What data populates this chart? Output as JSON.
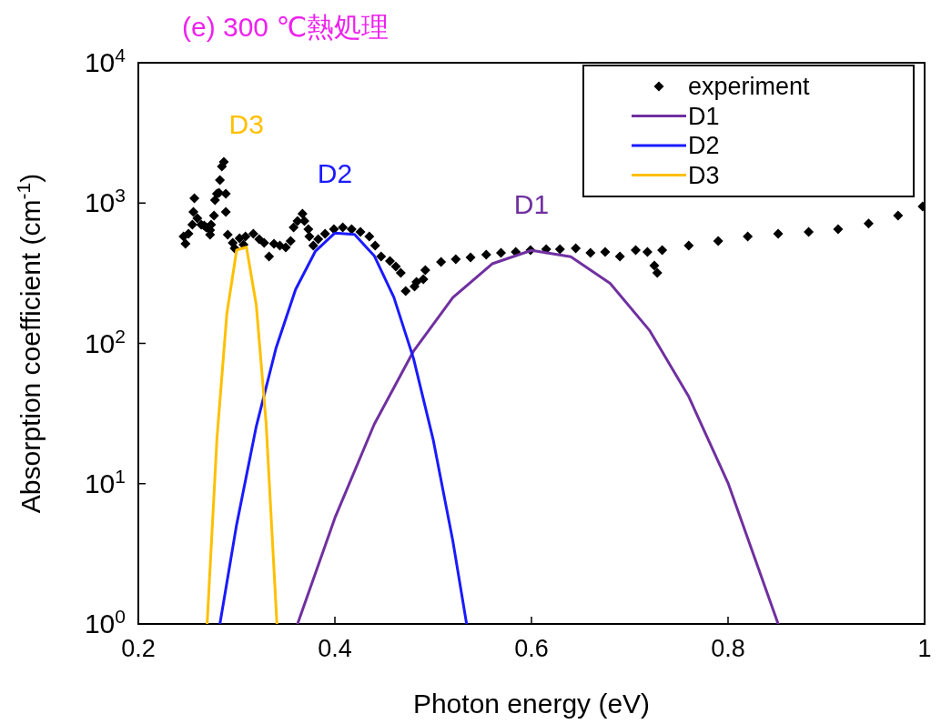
{
  "chart_data": {
    "type": "line",
    "title": "(e) 300 ℃熱処理",
    "xlabel": "Photon energy (eV)",
    "ylabel": "Absorption coefficient (cm$^{-1}$)",
    "log": "y",
    "xlim": [
      0.2,
      1
    ],
    "ylim": [
      1,
      10000
    ],
    "xticks": [
      0.2,
      0.4,
      0.6,
      0.8,
      {
        "value": 1,
        "label": "1"
      }
    ],
    "yticks": [
      {
        "value": 1,
        "label": "10$^{0}$"
      },
      {
        "value": 10,
        "label": "10$^{1}$"
      },
      {
        "value": 100,
        "label": "10$^{2}$"
      },
      {
        "value": 1000,
        "label": "10$^{3}$"
      },
      {
        "value": 10000,
        "label": "10$^{4}$"
      }
    ],
    "grid": false,
    "legend": "top right",
    "series": [
      {
        "name": "experiment",
        "type": "scatter",
        "marker": "diamond",
        "color": "#000000",
        "x": [
          0.246,
          0.248,
          0.251,
          0.255,
          0.256,
          0.257,
          0.26,
          0.264,
          0.267,
          0.269,
          0.273,
          0.273,
          0.274,
          0.277,
          0.278,
          0.28,
          0.282,
          0.283,
          0.285,
          0.287,
          0.289,
          0.289,
          0.291,
          0.296,
          0.298,
          0.303,
          0.307,
          0.309,
          0.317,
          0.323,
          0.328,
          0.333,
          0.338,
          0.344,
          0.35,
          0.355,
          0.358,
          0.362,
          0.367,
          0.369,
          0.373,
          0.374,
          0.378,
          0.383,
          0.39,
          0.399,
          0.408,
          0.417,
          0.426,
          0.435,
          0.441,
          0.447,
          0.456,
          0.462,
          0.467,
          0.472,
          0.481,
          0.483,
          0.49,
          0.492,
          0.508,
          0.523,
          0.538,
          0.554,
          0.569,
          0.584,
          0.599,
          0.615,
          0.629,
          0.645,
          0.66,
          0.675,
          0.69,
          0.706,
          0.718,
          0.725,
          0.728,
          0.733,
          0.76,
          0.79,
          0.82,
          0.851,
          0.882,
          0.912,
          0.943,
          0.973,
          0.998
        ],
        "values": [
          578,
          513,
          605,
          702,
          864,
          1082,
          778,
          702,
          691,
          671,
          641,
          595,
          702,
          815,
          1050,
          1165,
          1183,
          1459,
          1824,
          1965,
          1165,
          864,
          595,
          520,
          476,
          561,
          505,
          578,
          604,
          553,
          520,
          416,
          513,
          498,
          483,
          536,
          671,
          745,
          839,
          745,
          651,
          578,
          498,
          553,
          604,
          651,
          671,
          651,
          622,
          578,
          498,
          416,
          386,
          353,
          318,
          236,
          254,
          274,
          286,
          333,
          380,
          398,
          410,
          429,
          442,
          449,
          462,
          469,
          469,
          476,
          442,
          449,
          416,
          462,
          449,
          358,
          318,
          462,
          498,
          536,
          578,
          604,
          622,
          651,
          715,
          815,
          946
        ]
      },
      {
        "name": "D1",
        "color": "#7030a0",
        "x": [
          0.362,
          0.4,
          0.44,
          0.48,
          0.52,
          0.56,
          0.6,
          0.64,
          0.68,
          0.72,
          0.76,
          0.8,
          0.851
        ],
        "values": [
          1,
          5.7,
          26.5,
          88,
          212,
          369,
          460,
          414,
          268,
          124,
          41.7,
          10.1,
          1
        ]
      },
      {
        "name": "D2",
        "color": "#1a1aff",
        "x": [
          0.283,
          0.3,
          0.32,
          0.34,
          0.36,
          0.38,
          0.4,
          0.42,
          0.44,
          0.46,
          0.48,
          0.5,
          0.52,
          0.534
        ],
        "values": [
          1,
          5.1,
          25.6,
          92,
          242,
          452,
          612,
          597,
          421,
          213,
          78,
          20.6,
          3.9,
          1
        ]
      },
      {
        "name": "D3",
        "color": "#ffc000",
        "x": [
          0.27,
          0.28,
          0.29,
          0.3,
          0.31,
          0.32,
          0.33,
          0.341
        ],
        "values": [
          1,
          21,
          161,
          462,
          485,
          188,
          27,
          1
        ]
      }
    ],
    "annotations": [
      "D3",
      "D2",
      "D1"
    ]
  }
}
